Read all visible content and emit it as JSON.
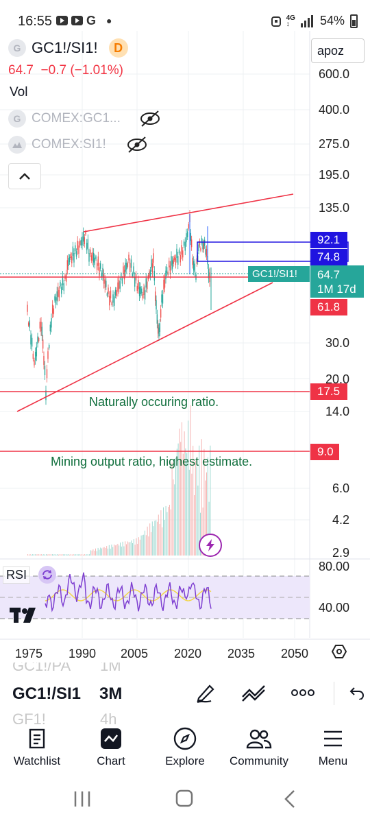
{
  "status_bar": {
    "time": "16:55",
    "network": "4G",
    "battery": "54%"
  },
  "legend": {
    "symbol": "GC1!/SI1!",
    "badge": "D",
    "last": "64.7",
    "change": "−0.7",
    "change_pct": "(−1.01%)",
    "volume_label": "Vol",
    "sub1": "COMEX:GC1...",
    "sub2": "COMEX:SI1!",
    "g_glyph": "G"
  },
  "axis_button": "apoz",
  "price_scale": [
    "600.0",
    "400.0",
    "275.0",
    "195.0",
    "135.0",
    "30.0",
    "20.0",
    "14.0",
    "6.0",
    "4.2",
    "2.9"
  ],
  "price_tags": {
    "upper_box": "92.1",
    "lower_box": "74.8",
    "symbol_label": "GC1!/SI1!",
    "last_price": "64.7",
    "countdown": "1M 17d",
    "support": "61.8",
    "natural": "17.5",
    "mining": "9.0"
  },
  "annotations": {
    "natural": "Naturally occuring ratio.",
    "mining": "Mining output ratio, highest estimate."
  },
  "rsi": {
    "label": "RSI",
    "levels": [
      "80.00",
      "40.00"
    ]
  },
  "time_axis": [
    "1975",
    "1990",
    "2005",
    "2020",
    "2035",
    "2050"
  ],
  "interval_picker": {
    "ghost_top_symbol": "GC1!/PA",
    "ghost_top_interval": "1M",
    "symbol": "GC1!/SI1",
    "interval": "3M",
    "ghost_bottom_symbol": "GF1!",
    "ghost_bottom_interval": "4h"
  },
  "nav": [
    "Watchlist",
    "Chart",
    "Explore",
    "Community",
    "Menu"
  ],
  "colors": {
    "red": "#ef3346",
    "blue": "#2014e0",
    "teal": "#26a69a",
    "green_text": "#0f6e3c"
  }
}
